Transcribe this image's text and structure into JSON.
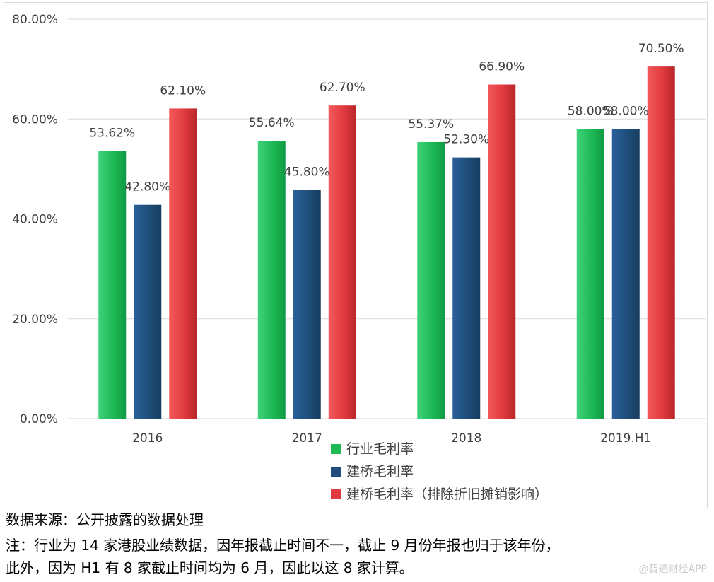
{
  "chart_data": {
    "type": "bar",
    "categories": [
      "2016",
      "2017",
      "2018",
      "2019.H1"
    ],
    "series": [
      {
        "name": "行业毛利率",
        "values": [
          53.62,
          55.64,
          55.37,
          58.0
        ],
        "labels": [
          "53.62%",
          "55.64%",
          "55.37%",
          "58.00%"
        ],
        "color": "#1db954",
        "color_light": "#3fd27a",
        "color_dark": "#109a44"
      },
      {
        "name": "建桥毛利率",
        "values": [
          42.8,
          45.8,
          52.3,
          58.0
        ],
        "labels": [
          "42.80%",
          "45.80%",
          "52.30%",
          "58.00%"
        ],
        "color": "#1f4e79",
        "color_light": "#2a6099",
        "color_dark": "#173d60"
      },
      {
        "name": "建桥毛利率（排除折旧摊销影响）",
        "values": [
          62.1,
          62.7,
          66.9,
          70.5
        ],
        "labels": [
          "62.10%",
          "62.70%",
          "66.90%",
          "70.50%"
        ],
        "color": "#e03a3e",
        "color_light": "#f35a5c",
        "color_dark": "#b8262b"
      }
    ],
    "ylim": [
      0,
      80
    ],
    "yticks": [
      0,
      20,
      40,
      60,
      80
    ],
    "ytick_labels": [
      "0.00%",
      "20.00%",
      "40.00%",
      "60.00%",
      "80.00%"
    ],
    "grid": true,
    "legend_position": "bottom-center",
    "title": "",
    "xlabel": "",
    "ylabel": ""
  },
  "notes": {
    "source": "数据来源：公开披露的数据处理",
    "line1": "注：行业为 14 家港股业绩数据，因年报截止时间不一，截止 9 月份年报也归于该年份，",
    "line2": "此外，因为 H1 有 8 家截止时间均为 6 月，因此以这 8 家计算。"
  },
  "watermark": "@智通财经APP",
  "colors": {
    "grid": "#d9d9d9",
    "axis_text": "#404040",
    "label_text": "#404040"
  }
}
